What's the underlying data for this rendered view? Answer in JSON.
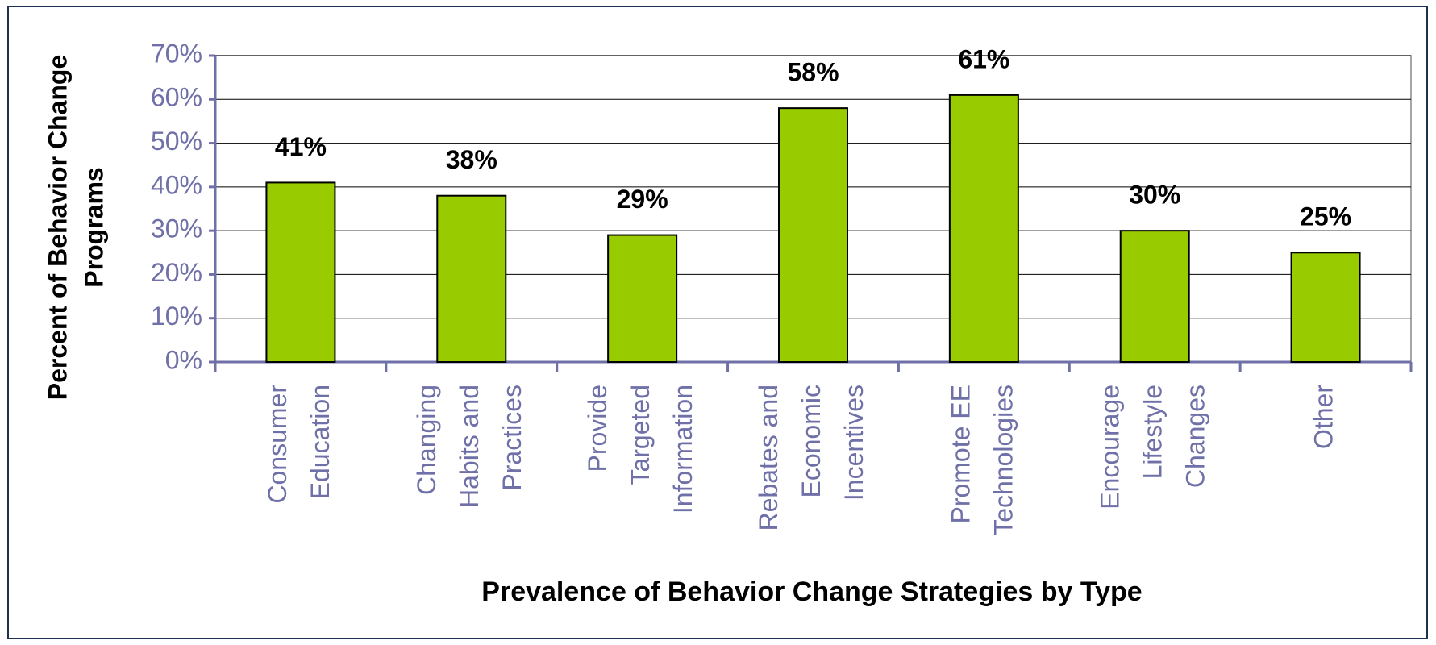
{
  "chart_data": {
    "type": "bar",
    "xlabel": "Prevalence of Behavior Change Strategies by Type",
    "ylabel": [
      "Percent of Behavior Change",
      "Programs"
    ],
    "categories": [
      [
        "Consumer",
        "Education"
      ],
      [
        "Changing",
        "Habits and",
        "Practices"
      ],
      [
        "Provide",
        "Targeted",
        "Information"
      ],
      [
        "Rebates and",
        "Economic",
        "Incentives"
      ],
      [
        "Promote EE",
        "Technologies"
      ],
      [
        "Encourage",
        "Lifestyle",
        "Changes"
      ],
      [
        "Other"
      ]
    ],
    "values": [
      41,
      38,
      29,
      58,
      61,
      30,
      25
    ],
    "value_labels": [
      "41%",
      "38%",
      "29%",
      "58%",
      "61%",
      "30%",
      "25%"
    ],
    "color": "#99cc00",
    "ylim": [
      0,
      70
    ],
    "yticks": [
      {
        "value": 0,
        "label": "0%"
      },
      {
        "value": 10,
        "label": "10%"
      },
      {
        "value": 20,
        "label": "20%"
      },
      {
        "value": 30,
        "label": "30%"
      },
      {
        "value": 40,
        "label": "40%"
      },
      {
        "value": 50,
        "label": "50%"
      },
      {
        "value": 60,
        "label": "60%"
      },
      {
        "value": 70,
        "label": "70%"
      }
    ],
    "grid": true
  }
}
